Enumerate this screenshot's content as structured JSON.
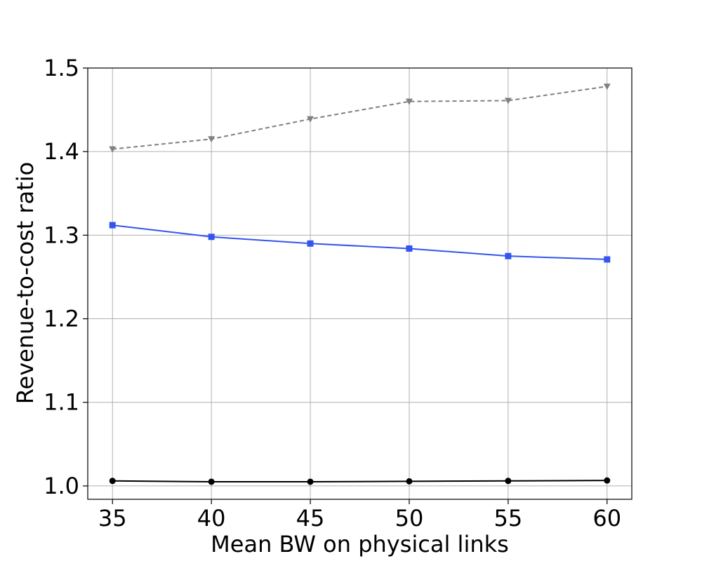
{
  "chart_data": {
    "type": "line",
    "title": "",
    "xlabel": "Mean BW on physical links",
    "ylabel": "Revenue-to-cost ratio",
    "x": [
      35,
      40,
      45,
      50,
      55,
      60
    ],
    "xticks": [
      "35",
      "40",
      "45",
      "50",
      "55",
      "60"
    ],
    "yticks": [
      "1.0",
      "1.1",
      "1.2",
      "1.3",
      "1.4",
      "1.5"
    ],
    "ytick_values": [
      1.0,
      1.1,
      1.2,
      1.3,
      1.4,
      1.5
    ],
    "xlim": [
      33.75,
      61.25
    ],
    "ylim": [
      0.984,
      1.5
    ],
    "grid": true,
    "series": [
      {
        "values": [
          1.403,
          1.415,
          1.439,
          1.46,
          1.461,
          1.478
        ],
        "color": "#808080",
        "line_style": "dashed",
        "marker": "triangle-down"
      },
      {
        "values": [
          1.312,
          1.298,
          1.29,
          1.284,
          1.275,
          1.271
        ],
        "color": "#3355ee",
        "line_style": "solid",
        "marker": "square"
      },
      {
        "values": [
          1.006,
          1.005,
          1.005,
          1.0055,
          1.006,
          1.0065
        ],
        "color": "#000000",
        "line_style": "solid",
        "marker": "circle"
      }
    ]
  }
}
